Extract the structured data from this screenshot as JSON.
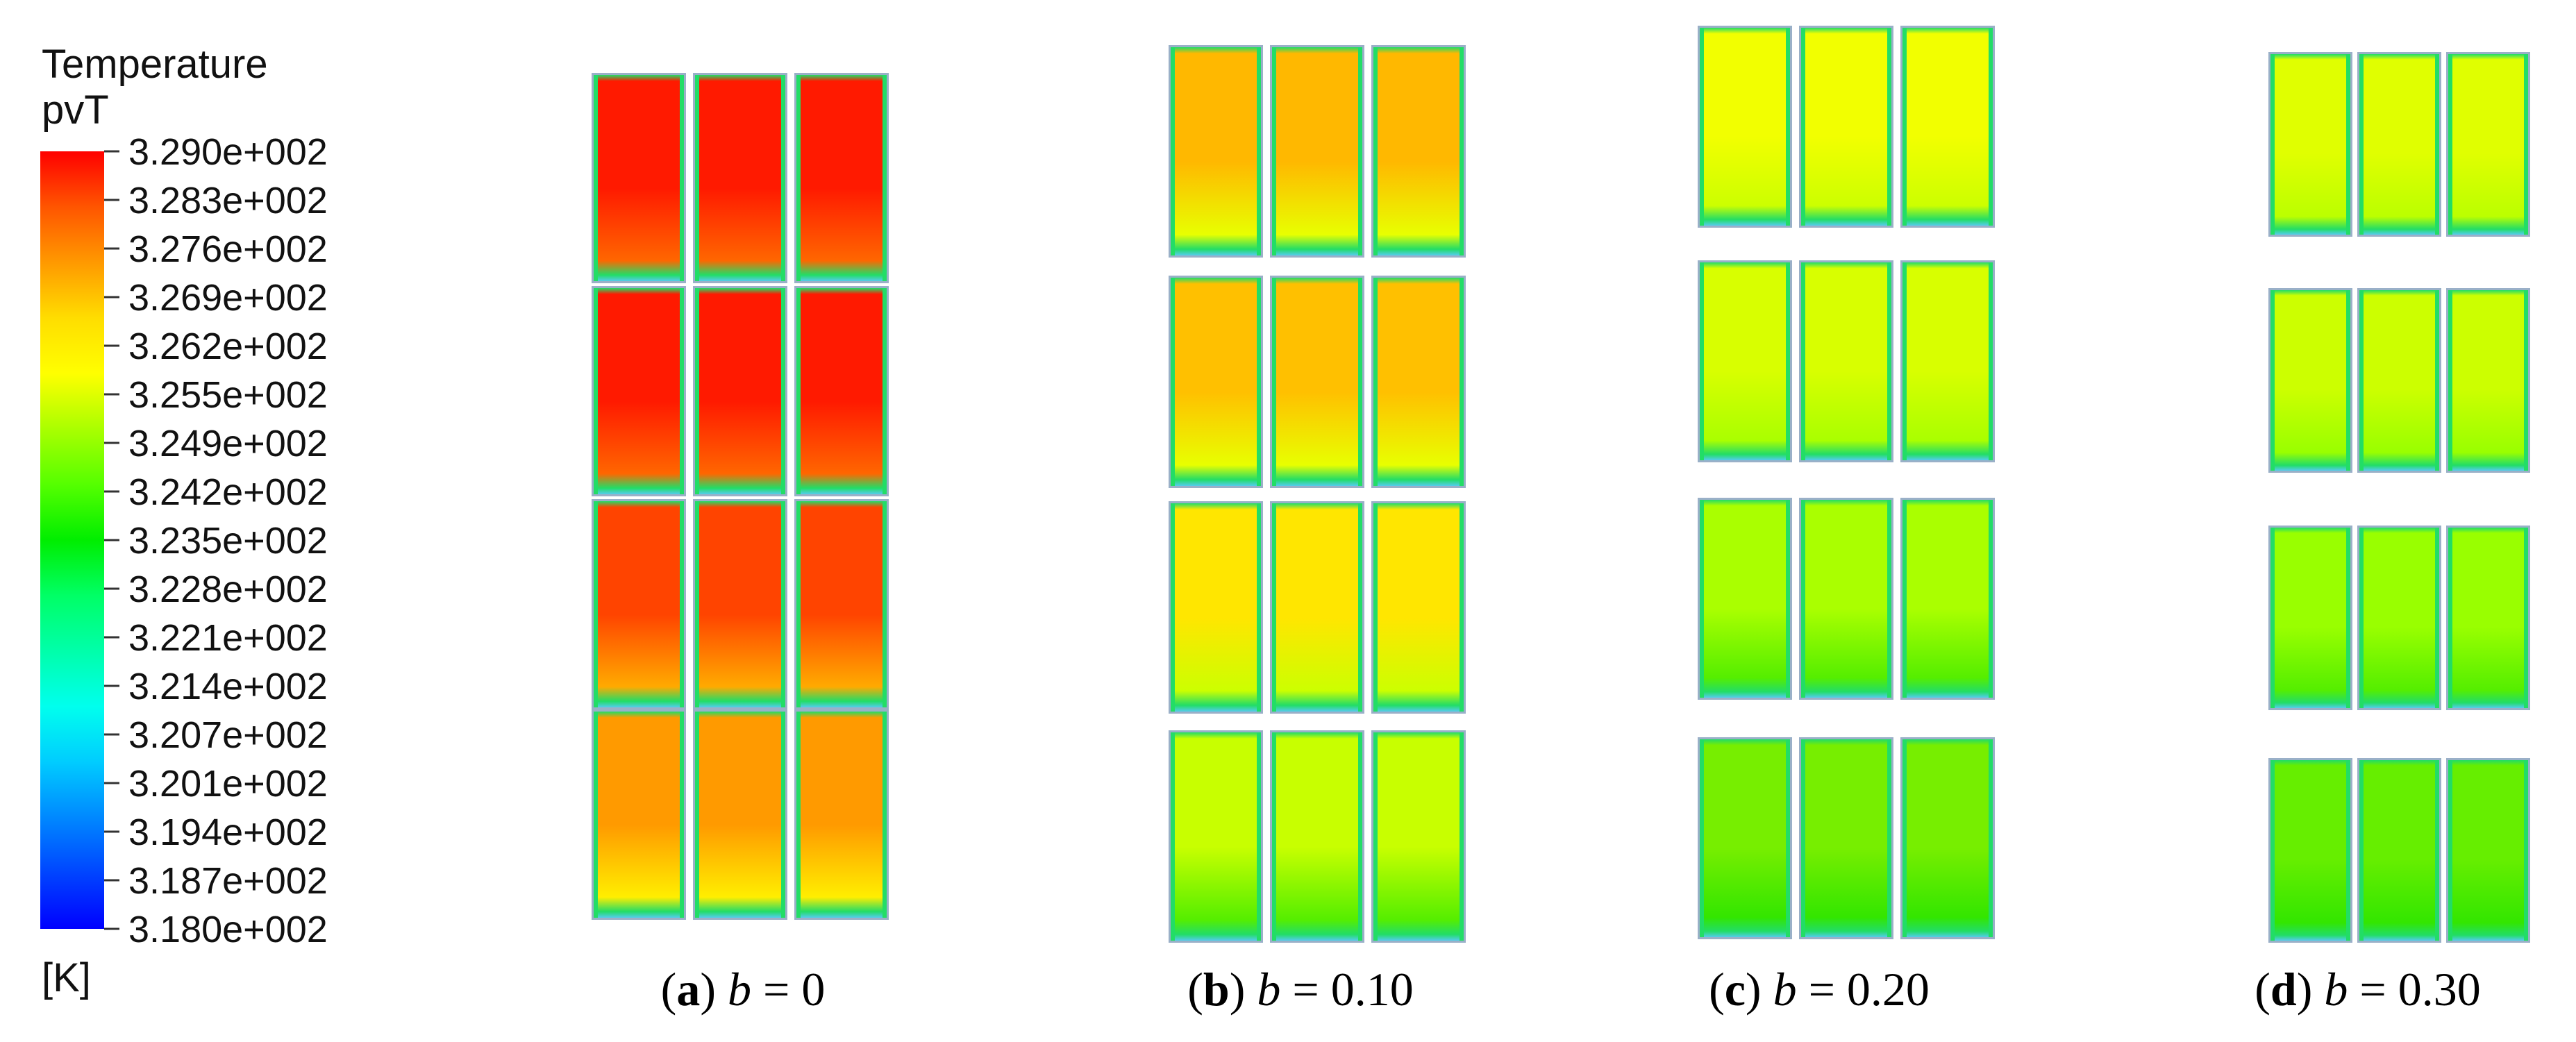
{
  "legend": {
    "title": "Temperature",
    "variable": "pvT",
    "unit": "[K]",
    "ticks": [
      "3.290e+002",
      "3.283e+002",
      "3.276e+002",
      "3.269e+002",
      "3.262e+002",
      "3.255e+002",
      "3.249e+002",
      "3.242e+002",
      "3.235e+002",
      "3.228e+002",
      "3.221e+002",
      "3.214e+002",
      "3.207e+002",
      "3.201e+002",
      "3.194e+002",
      "3.187e+002",
      "3.180e+002"
    ],
    "colors": [
      "#ff0000",
      "#ff5500",
      "#ff9900",
      "#ffdd00",
      "#ffff00",
      "#aaff00",
      "#55ff00",
      "#00ee00",
      "#00ff66",
      "#00ffaa",
      "#00ffee",
      "#00ccff",
      "#0088ff",
      "#0044ff",
      "#0000ff"
    ]
  },
  "panels": [
    {
      "id": "a",
      "b_value": "0",
      "rows": [
        {
          "top": "#ff1a00",
          "bottom": "#ff6600"
        },
        {
          "top": "#ff1a00",
          "bottom": "#ff6600"
        },
        {
          "top": "#ff4400",
          "bottom": "#ffaa00"
        },
        {
          "top": "#ff9a00",
          "bottom": "#ffee00"
        }
      ]
    },
    {
      "id": "b",
      "b_value": "0.10",
      "rows": [
        {
          "top": "#ffb800",
          "bottom": "#e8ff00"
        },
        {
          "top": "#ffc000",
          "bottom": "#e8ff00"
        },
        {
          "top": "#ffe600",
          "bottom": "#ccff00"
        },
        {
          "top": "#c8ff00",
          "bottom": "#55ee00"
        }
      ]
    },
    {
      "id": "c",
      "b_value": "0.20",
      "rows": [
        {
          "top": "#f2ff00",
          "bottom": "#ccff00"
        },
        {
          "top": "#d8ff00",
          "bottom": "#aaff00"
        },
        {
          "top": "#aaff00",
          "bottom": "#55ee00"
        },
        {
          "top": "#77ee00",
          "bottom": "#33e600"
        }
      ]
    },
    {
      "id": "d",
      "b_value": "0.30",
      "rows": [
        {
          "top": "#e0ff00",
          "bottom": "#bbff00"
        },
        {
          "top": "#ccff00",
          "bottom": "#99ff00"
        },
        {
          "top": "#99ff00",
          "bottom": "#55ee00"
        },
        {
          "top": "#66ee00",
          "bottom": "#33e600"
        }
      ]
    }
  ],
  "caption_variable": "b",
  "caption_equals": "="
}
